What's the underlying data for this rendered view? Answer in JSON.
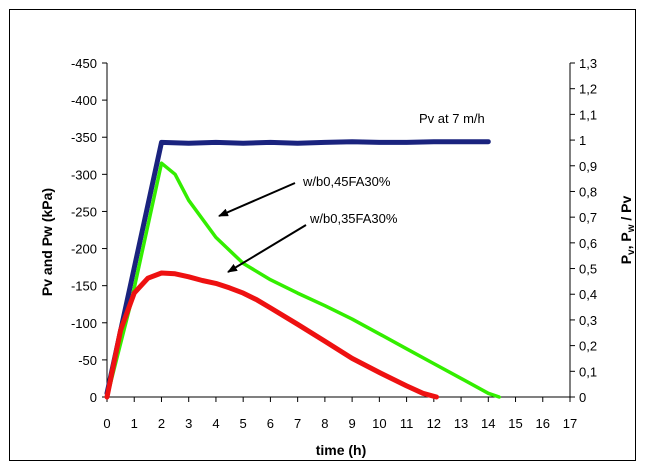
{
  "chart_data": {
    "type": "line",
    "xlabel": "time (h)",
    "ylabel_left": "Pv and Pw  (kPa)",
    "ylabel_right_parts": [
      "P",
      "v",
      ", P",
      "w",
      " / Pv"
    ],
    "x_ticks": [
      "0",
      "1",
      "2",
      "3",
      "4",
      "5",
      "6",
      "7",
      "8",
      "9",
      "10",
      "11",
      "12",
      "13",
      "14",
      "15",
      "16",
      "17"
    ],
    "y_left_ticks": [
      "0",
      "-50",
      "-100",
      "-150",
      "-200",
      "-250",
      "-300",
      "-350",
      "-400",
      "-450"
    ],
    "y_right_ticks": [
      "0",
      "0,1",
      "0,2",
      "0,3",
      "0,4",
      "0,5",
      "0,6",
      "0,7",
      "0,8",
      "0,9",
      "1",
      "1,1",
      "1,2",
      "1,3"
    ],
    "xlim": [
      0,
      17
    ],
    "ylim_left": [
      0,
      -450
    ],
    "ylim_right": [
      0,
      1.3
    ],
    "grid": false,
    "series": [
      {
        "name": "Pv at 7 m/h",
        "color": "#1a237e",
        "x": [
          0,
          2,
          3,
          4,
          5,
          6,
          7,
          8,
          9,
          10,
          11,
          12,
          13,
          14
        ],
        "y": [
          -5,
          -343,
          -342,
          -343,
          -342,
          -343,
          -342,
          -343,
          -344,
          -343,
          -343,
          -344,
          -344,
          -344
        ]
      },
      {
        "name": "w/b0,45FA30%",
        "color": "#33ee00",
        "x": [
          0,
          0.9,
          2,
          2.5,
          3,
          4,
          5,
          6,
          7,
          8,
          9,
          10,
          11,
          12,
          13,
          14,
          14.4
        ],
        "y": [
          0,
          -130,
          -315,
          -300,
          -265,
          -215,
          -180,
          -158,
          -140,
          -123,
          -105,
          -85,
          -65,
          -45,
          -25,
          -5,
          0
        ]
      },
      {
        "name": "w/b0,35FA30%",
        "color": "#ee1111",
        "x": [
          0,
          0.5,
          1,
          1.5,
          2,
          2.5,
          3,
          3.5,
          4,
          4.5,
          5,
          5.5,
          6,
          7,
          8,
          9,
          10,
          11,
          11.6,
          12.1
        ],
        "y": [
          0,
          -90,
          -140,
          -160,
          -167,
          -166,
          -162,
          -157,
          -153,
          -147,
          -140,
          -131,
          -120,
          -98,
          -75,
          -52,
          -33,
          -15,
          -5,
          0
        ]
      }
    ],
    "annotations": [
      {
        "text": "Pv at 7 m/h"
      },
      {
        "text": "w/b0,45FA30%"
      },
      {
        "text": "w/b0,35FA30%"
      }
    ]
  }
}
